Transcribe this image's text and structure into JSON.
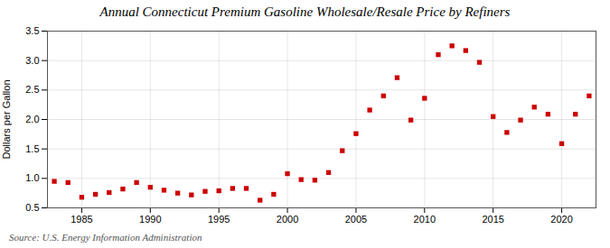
{
  "chart_data": {
    "type": "scatter",
    "title": "Annual Connecticut Premium Gasoline Wholesale/Resale Price by Refiners",
    "ylabel": "Dollars per Gallon",
    "source": "Source: U.S. Energy Information Administration",
    "x": [
      1983,
      1984,
      1985,
      1986,
      1987,
      1988,
      1989,
      1990,
      1991,
      1992,
      1993,
      1994,
      1995,
      1996,
      1997,
      1998,
      1999,
      2000,
      2001,
      2002,
      2003,
      2004,
      2005,
      2006,
      2007,
      2008,
      2009,
      2010,
      2011,
      2012,
      2013,
      2014,
      2015,
      2016,
      2017,
      2018,
      2019,
      2020,
      2021,
      2022
    ],
    "values": [
      0.95,
      0.93,
      0.68,
      0.73,
      0.76,
      0.82,
      0.93,
      0.85,
      0.8,
      0.75,
      0.72,
      0.78,
      0.79,
      0.83,
      0.83,
      0.63,
      0.73,
      1.08,
      0.98,
      0.97,
      1.1,
      1.47,
      1.76,
      2.16,
      2.4,
      2.71,
      1.99,
      2.36,
      3.1,
      3.25,
      3.17,
      2.97,
      2.05,
      1.78,
      1.99,
      2.21,
      2.09,
      1.59,
      2.09,
      2.4
    ],
    "color": "#cc0000",
    "marker": "square",
    "xlim": [
      1982.5,
      2022.5
    ],
    "ylim": [
      0.5,
      3.5
    ],
    "xticks": [
      1985,
      1990,
      1995,
      2000,
      2005,
      2010,
      2015,
      2020
    ],
    "yticks": [
      0.5,
      {
        "value": 1.0,
        "label": "1.0"
      },
      1.5,
      {
        "value": 2.0,
        "label": "2.0"
      },
      2.5,
      {
        "value": 3.0,
        "label": "3.0"
      },
      3.5
    ],
    "grid": true
  }
}
